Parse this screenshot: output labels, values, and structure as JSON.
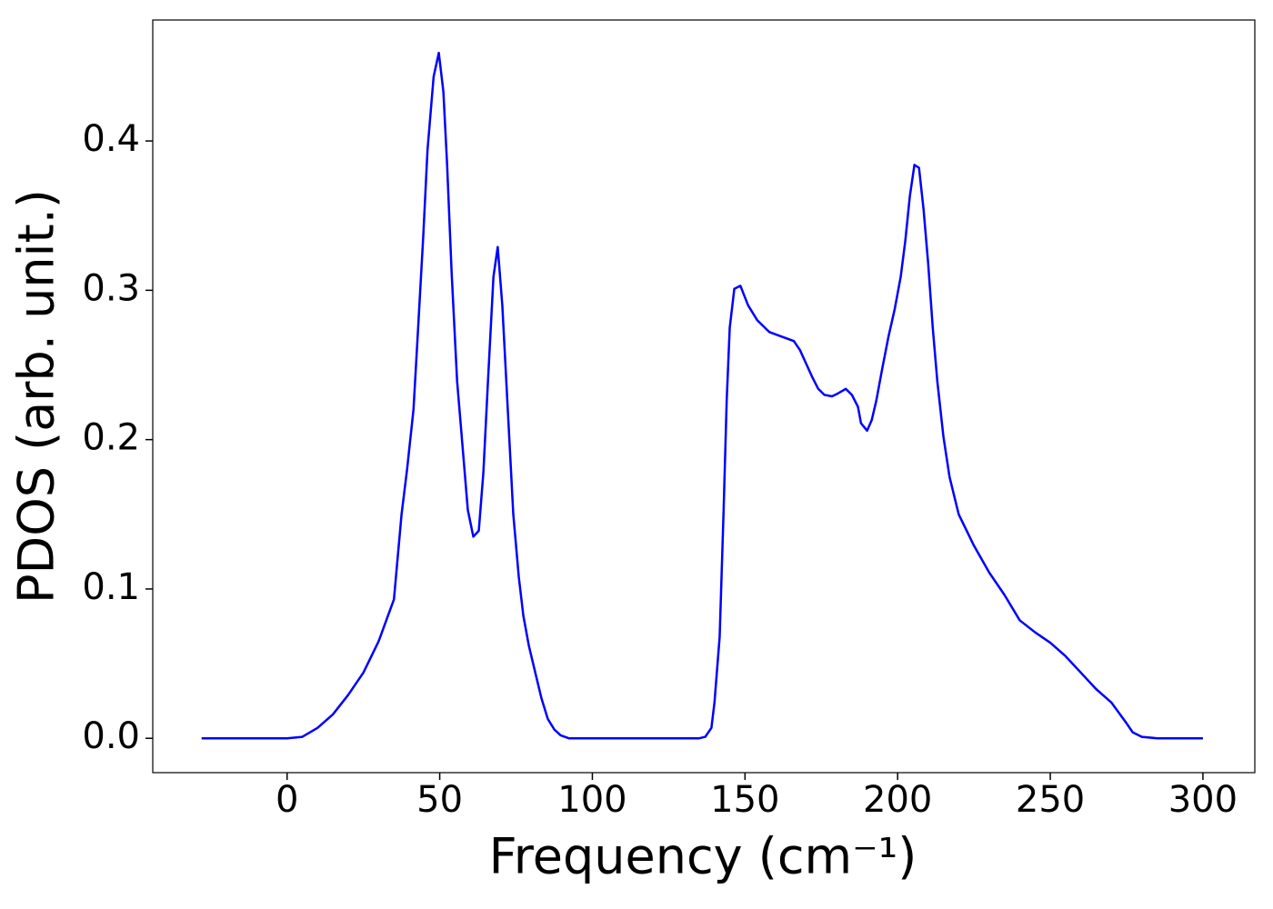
{
  "chart_data": {
    "type": "line",
    "xlabel": "Frequency (cm⁻¹)",
    "ylabel": "PDOS (arb. unit.)",
    "x": [
      -28,
      0,
      5,
      10,
      15,
      20,
      25,
      30,
      35,
      37.5,
      39.3,
      41.4,
      42.6,
      44.6,
      46,
      48,
      49.7,
      51.2,
      52.4,
      53.9,
      55.7,
      57.7,
      59.2,
      61,
      62.8,
      64.3,
      65.8,
      67.6,
      69,
      70.5,
      72.3,
      74.1,
      75.9,
      77.4,
      79.2,
      81.3,
      83.3,
      85.4,
      87.5,
      89.6,
      92.3,
      135,
      137,
      139,
      140,
      141.7,
      143,
      144,
      145,
      146.5,
      148.5,
      151,
      154,
      158,
      162,
      166,
      168,
      170,
      172,
      174,
      176,
      178.5,
      180.5,
      183,
      185,
      187,
      188,
      190,
      191.5,
      193,
      195,
      197,
      199,
      201,
      202.5,
      204,
      205.5,
      207,
      208.5,
      210,
      211.5,
      213,
      215,
      217,
      220,
      225,
      230,
      235,
      240,
      245,
      250,
      255,
      260,
      265,
      270,
      275,
      277,
      280,
      285,
      300
    ],
    "series": [
      {
        "color": "#0000ff",
        "values": [
          0,
          0,
          0.001,
          0.007,
          0.016,
          0.029,
          0.044,
          0.065,
          0.093,
          0.15,
          0.18,
          0.22,
          0.263,
          0.336,
          0.394,
          0.443,
          0.459,
          0.433,
          0.385,
          0.312,
          0.239,
          0.19,
          0.153,
          0.135,
          0.139,
          0.178,
          0.239,
          0.309,
          0.329,
          0.29,
          0.22,
          0.15,
          0.108,
          0.082,
          0.062,
          0.044,
          0.027,
          0.013,
          0.006,
          0.002,
          0,
          0,
          0.001,
          0.007,
          0.024,
          0.068,
          0.153,
          0.226,
          0.275,
          0.301,
          0.303,
          0.29,
          0.28,
          0.272,
          0.269,
          0.266,
          0.26,
          0.251,
          0.242,
          0.234,
          0.23,
          0.229,
          0.231,
          0.234,
          0.23,
          0.222,
          0.211,
          0.206,
          0.213,
          0.226,
          0.248,
          0.269,
          0.287,
          0.309,
          0.333,
          0.363,
          0.384,
          0.382,
          0.354,
          0.318,
          0.275,
          0.239,
          0.202,
          0.175,
          0.15,
          0.129,
          0.111,
          0.096,
          0.079,
          0.071,
          0.064,
          0.055,
          0.044,
          0.033,
          0.024,
          0.01,
          0.004,
          0.001,
          0,
          0
        ]
      }
    ],
    "xlim": [
      -44,
      317
    ],
    "ylim": [
      -0.023,
      0.481
    ],
    "xticks": [
      0,
      50,
      100,
      150,
      200,
      250,
      300
    ],
    "yticks": [
      {
        "value": 0,
        "label": "0.0"
      },
      0.1,
      0.2,
      0.3,
      0.4
    ]
  }
}
